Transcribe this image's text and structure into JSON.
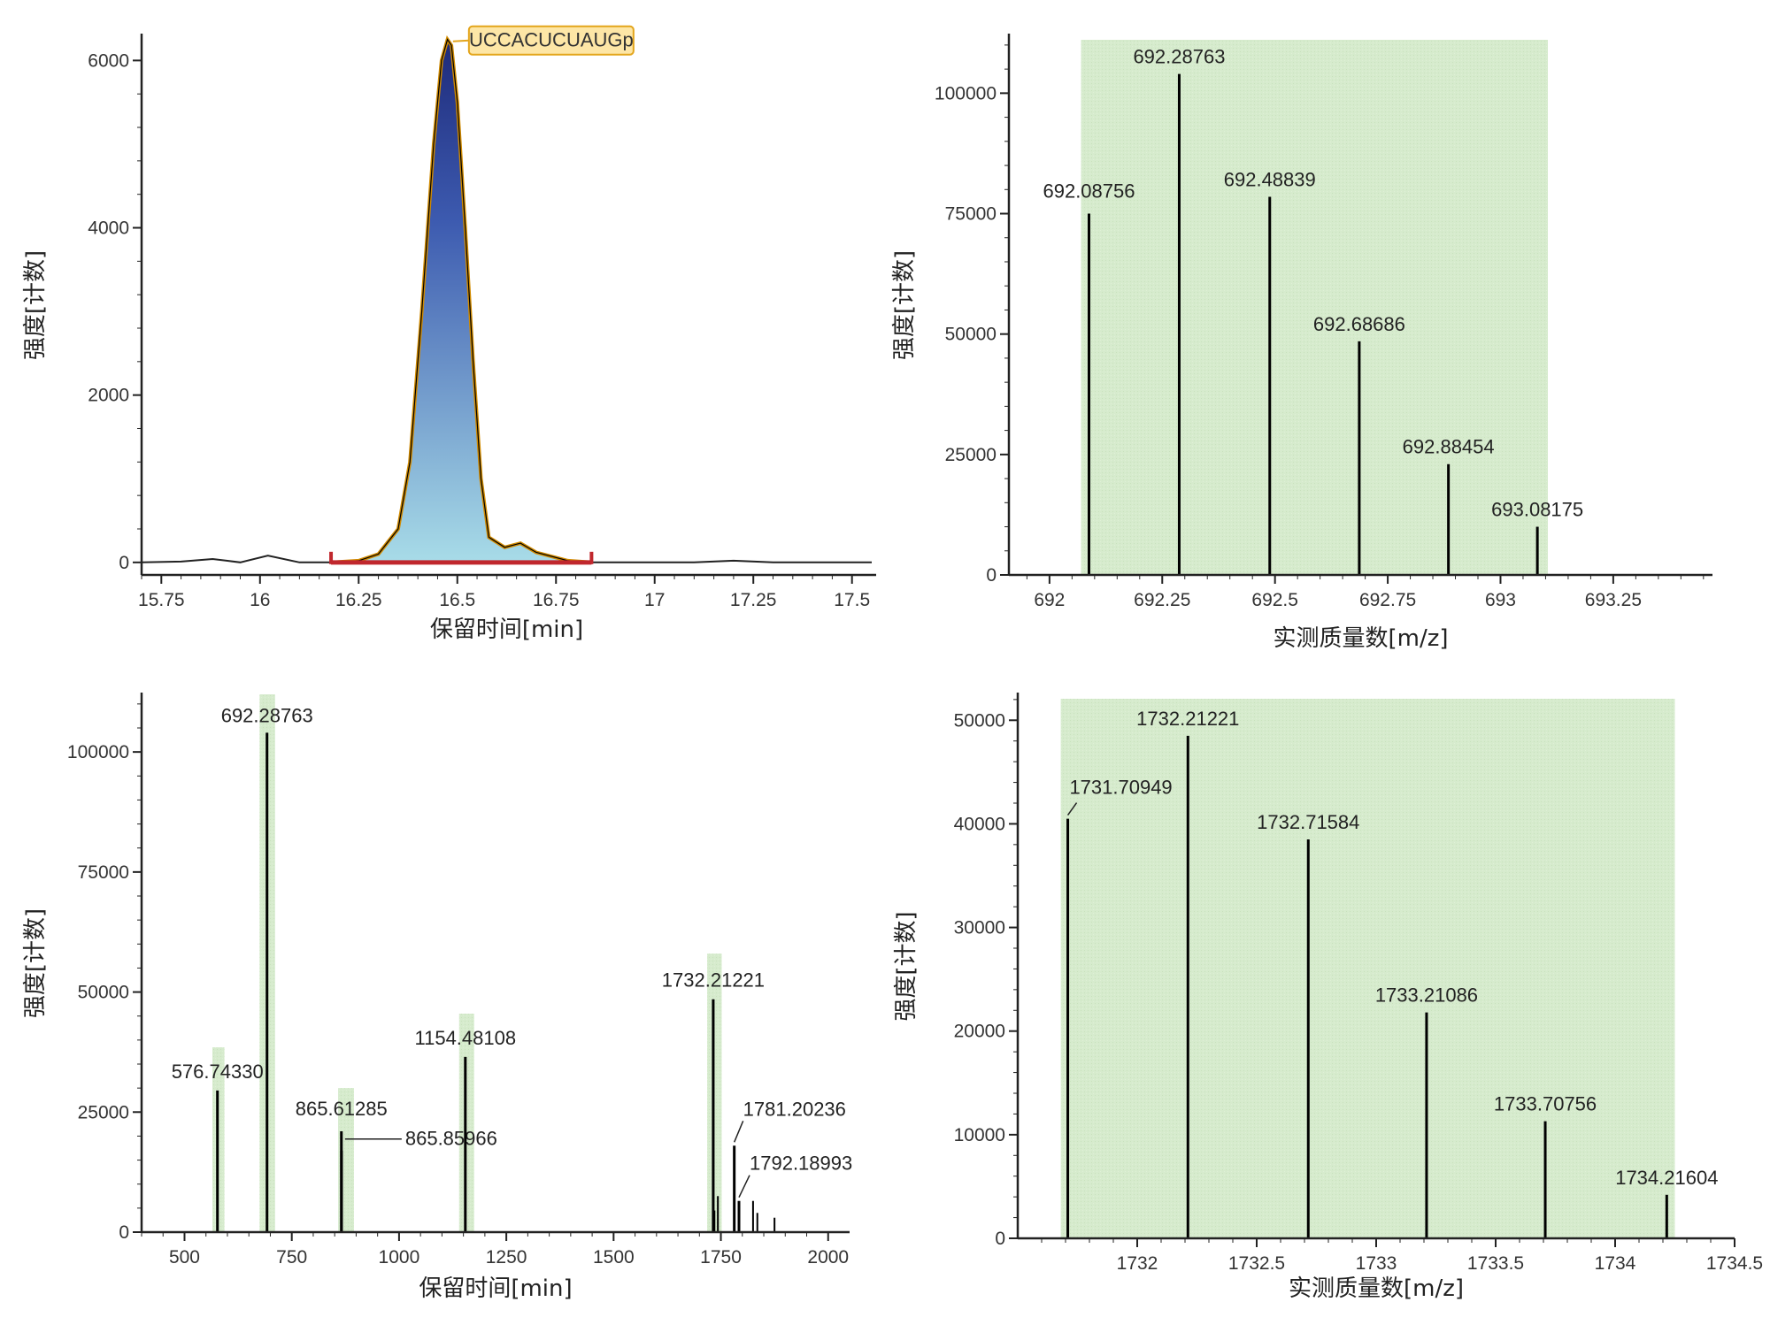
{
  "colors": {
    "highlight": "#d6ebcd",
    "stick": "#000000",
    "axis": "#222222",
    "peak_top": "#1e2a7a",
    "peak_bottom": "#a8dce8",
    "peak_outline": "#d08a00",
    "integration": "#c0272d",
    "annotation_bg": "#fde6a6",
    "annotation_border": "#e3a51c"
  },
  "chart_data": [
    {
      "id": "chromatogram",
      "type": "area",
      "xlabel": "保留时间[min]",
      "ylabel": "强度[计数]",
      "xlim": [
        15.7,
        17.55
      ],
      "ylim": [
        -150,
        6300
      ],
      "xticks": [
        15.75,
        16,
        16.25,
        16.5,
        16.75,
        17,
        17.25,
        17.5
      ],
      "xtick_labels": [
        "15.75",
        "16",
        "16.25",
        "16.5",
        "16.75",
        "17",
        "17.25",
        "17.5"
      ],
      "yticks": [
        0,
        2000,
        4000,
        6000
      ],
      "ytick_labels": [
        "0",
        "2000",
        "4000",
        "6000"
      ],
      "baseline": {
        "x": [
          15.7,
          15.8,
          15.88,
          15.95,
          16.02,
          16.1,
          16.18,
          17.0,
          17.1,
          17.2,
          17.3,
          17.55
        ],
        "y": [
          0,
          10,
          40,
          0,
          80,
          0,
          0,
          0,
          0,
          20,
          0,
          0
        ]
      },
      "peak": {
        "x": [
          16.18,
          16.25,
          16.3,
          16.35,
          16.38,
          16.41,
          16.44,
          16.46,
          16.475,
          16.485,
          16.5,
          16.52,
          16.54,
          16.56,
          16.58,
          16.62,
          16.66,
          16.7,
          16.78,
          16.84
        ],
        "y": [
          0,
          20,
          100,
          400,
          1200,
          3000,
          5000,
          6000,
          6250,
          6180,
          5500,
          4000,
          2400,
          1000,
          300,
          180,
          230,
          120,
          20,
          0
        ]
      },
      "integration_range": [
        16.18,
        16.84
      ],
      "annotation": {
        "text": "UCCACUCUAUGp",
        "x": 16.48,
        "y": 6250
      }
    },
    {
      "id": "isotope-692",
      "type": "bar",
      "xlabel": "实测质量数[m/z]",
      "ylabel": "强度[计数]",
      "xlim": [
        691.91,
        693.47
      ],
      "ylim": [
        0,
        112000
      ],
      "xticks": [
        692,
        692.25,
        692.5,
        692.75,
        693,
        693.25
      ],
      "xtick_labels": [
        "692",
        "692.25",
        "692.5",
        "692.75",
        "693",
        "693.25"
      ],
      "yticks": [
        0,
        25000,
        50000,
        75000,
        100000
      ],
      "ytick_labels": [
        "0",
        "25000",
        "50000",
        "75000",
        "100000"
      ],
      "highlight": [
        [
          692.07,
          693.105
        ]
      ],
      "peaks": [
        {
          "x": 692.08756,
          "y": 75000,
          "label": "692.08756"
        },
        {
          "x": 692.28763,
          "y": 104000,
          "label": "692.28763"
        },
        {
          "x": 692.48839,
          "y": 78500,
          "label": "692.48839"
        },
        {
          "x": 692.68686,
          "y": 48500,
          "label": "692.68686"
        },
        {
          "x": 692.88454,
          "y": 23000,
          "label": "692.88454"
        },
        {
          "x": 693.08175,
          "y": 10000,
          "label": "693.08175"
        }
      ]
    },
    {
      "id": "full-spectrum",
      "type": "bar",
      "xlabel": "保留时间[min]",
      "ylabel": "强度[计数]",
      "xlim": [
        400,
        2050
      ],
      "ylim": [
        0,
        112000
      ],
      "xticks": [
        500,
        750,
        1000,
        1250,
        1500,
        1750,
        2000
      ],
      "xtick_labels": [
        "500",
        "750",
        "1000",
        "1250",
        "1500",
        "1750",
        "2000"
      ],
      "yticks": [
        0,
        25000,
        50000,
        75000,
        100000
      ],
      "ytick_labels": [
        "0",
        "25000",
        "50000",
        "75000",
        "100000"
      ],
      "highlight": [
        [
          565,
          593,
          38500
        ],
        [
          675,
          711,
          112000
        ],
        [
          858,
          895,
          30000
        ],
        [
          1140,
          1175,
          45500
        ],
        [
          1718,
          1752,
          58000
        ]
      ],
      "peaks": [
        {
          "x": 576.7433,
          "y": 29500,
          "label": "576.74330"
        },
        {
          "x": 692.28763,
          "y": 104000,
          "label": "692.28763"
        },
        {
          "x": 865.61285,
          "y": 21000,
          "label": "865.61285"
        },
        {
          "x": 865.85966,
          "y": 17000,
          "label": "865.85966"
        },
        {
          "x": 1154.48108,
          "y": 36500,
          "label": "1154.48108"
        },
        {
          "x": 1732.21221,
          "y": 48500,
          "label": "1732.21221"
        },
        {
          "x": 1735.0,
          "y": 4500,
          "label": ""
        },
        {
          "x": 1743.0,
          "y": 7500,
          "label": ""
        },
        {
          "x": 1781.20236,
          "y": 18000,
          "label": "1781.20236"
        },
        {
          "x": 1792.18993,
          "y": 6500,
          "label": "1792.18993"
        },
        {
          "x": 1825.0,
          "y": 6500,
          "label": ""
        },
        {
          "x": 1835.0,
          "y": 4000,
          "label": ""
        },
        {
          "x": 1875.0,
          "y": 3000,
          "label": ""
        }
      ]
    },
    {
      "id": "isotope-1732",
      "type": "bar",
      "xlabel": "实测质量数[m/z]",
      "ylabel": "强度[计数]",
      "xlim": [
        1731.5,
        1734.5
      ],
      "ylim": [
        0,
        52500
      ],
      "xticks": [
        1732,
        1732.5,
        1733,
        1733.5,
        1734,
        1734.5
      ],
      "xtick_labels": [
        "1732",
        "1732.5",
        "1733",
        "1733.5",
        "1734",
        "1734.5"
      ],
      "yticks": [
        0,
        10000,
        20000,
        30000,
        40000,
        50000
      ],
      "ytick_labels": [
        "0",
        "10000",
        "20000",
        "30000",
        "40000",
        "50000"
      ],
      "highlight": [
        [
          1731.68,
          1734.25
        ]
      ],
      "peaks": [
        {
          "x": 1731.70949,
          "y": 40500,
          "label": "1731.70949"
        },
        {
          "x": 1732.21221,
          "y": 48500,
          "label": "1732.21221"
        },
        {
          "x": 1732.71584,
          "y": 38500,
          "label": "1732.71584"
        },
        {
          "x": 1733.21086,
          "y": 21800,
          "label": "1733.21086"
        },
        {
          "x": 1733.70756,
          "y": 11300,
          "label": "1733.70756"
        },
        {
          "x": 1734.21604,
          "y": 4200,
          "label": "1734.21604"
        }
      ]
    }
  ]
}
